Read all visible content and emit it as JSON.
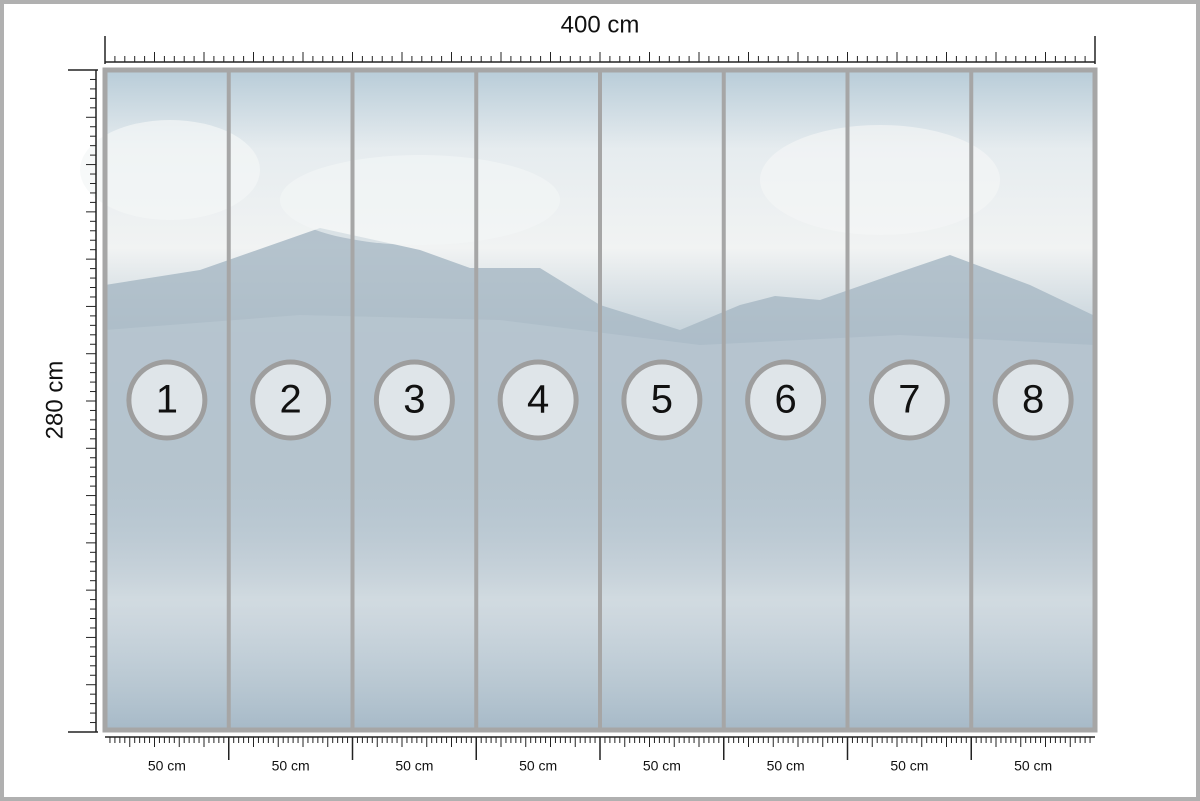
{
  "dimensions": {
    "width": "400 cm",
    "height": "280 cm"
  },
  "panels": [
    {
      "number": "1",
      "width": "50 cm"
    },
    {
      "number": "2",
      "width": "50 cm"
    },
    {
      "number": "3",
      "width": "50 cm"
    },
    {
      "number": "4",
      "width": "50 cm"
    },
    {
      "number": "5",
      "width": "50 cm"
    },
    {
      "number": "6",
      "width": "50 cm"
    },
    {
      "number": "7",
      "width": "50 cm"
    },
    {
      "number": "8",
      "width": "50 cm"
    }
  ]
}
